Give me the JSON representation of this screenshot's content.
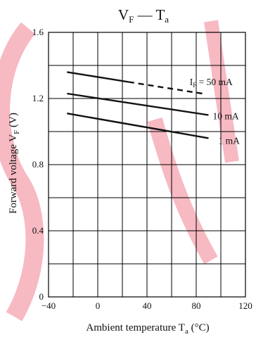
{
  "chart_data": {
    "type": "line",
    "title_main": "V",
    "title_sub": "F",
    "title_sep": "—",
    "title_main2": "T",
    "title_sub2": "a",
    "xlabel_main": "Ambient temperature",
    "xlabel_var": "T",
    "xlabel_var_sub": "a",
    "xlabel_unit": "(°C)",
    "ylabel_main": "Forward voltage",
    "ylabel_var": "V",
    "ylabel_var_sub": "F",
    "ylabel_unit": "(V)",
    "xlim": [
      -40,
      120
    ],
    "ylim": [
      0,
      1.6
    ],
    "x_ticks": [
      -40,
      0,
      40,
      80,
      120
    ],
    "x_tick_labels": [
      "−40",
      "0",
      "40",
      "80",
      "120"
    ],
    "y_ticks": [
      0,
      0.4,
      0.8,
      1.2,
      1.6
    ],
    "y_tick_labels": [
      "0",
      "0.4",
      "0.8",
      "1.2",
      "1.6"
    ],
    "grid": true,
    "series": [
      {
        "name": "50 mA",
        "label_prefix": "I",
        "label_sub": "F",
        "label_rest": " = 50 mA",
        "solid": [
          [
            -25,
            1.36
          ],
          [
            25,
            1.3
          ]
        ],
        "dashed": [
          [
            25,
            1.3
          ],
          [
            85,
            1.23
          ]
        ]
      },
      {
        "name": "10 mA",
        "label_prefix": "",
        "label_sub": "",
        "label_rest": "10 mA",
        "solid": [
          [
            -25,
            1.23
          ],
          [
            90,
            1.1
          ]
        ],
        "dashed": []
      },
      {
        "name": "1 mA",
        "label_prefix": "",
        "label_sub": "",
        "label_rest": "1 mA",
        "solid": [
          [
            -25,
            1.11
          ],
          [
            90,
            0.96
          ]
        ],
        "dashed": []
      }
    ]
  }
}
